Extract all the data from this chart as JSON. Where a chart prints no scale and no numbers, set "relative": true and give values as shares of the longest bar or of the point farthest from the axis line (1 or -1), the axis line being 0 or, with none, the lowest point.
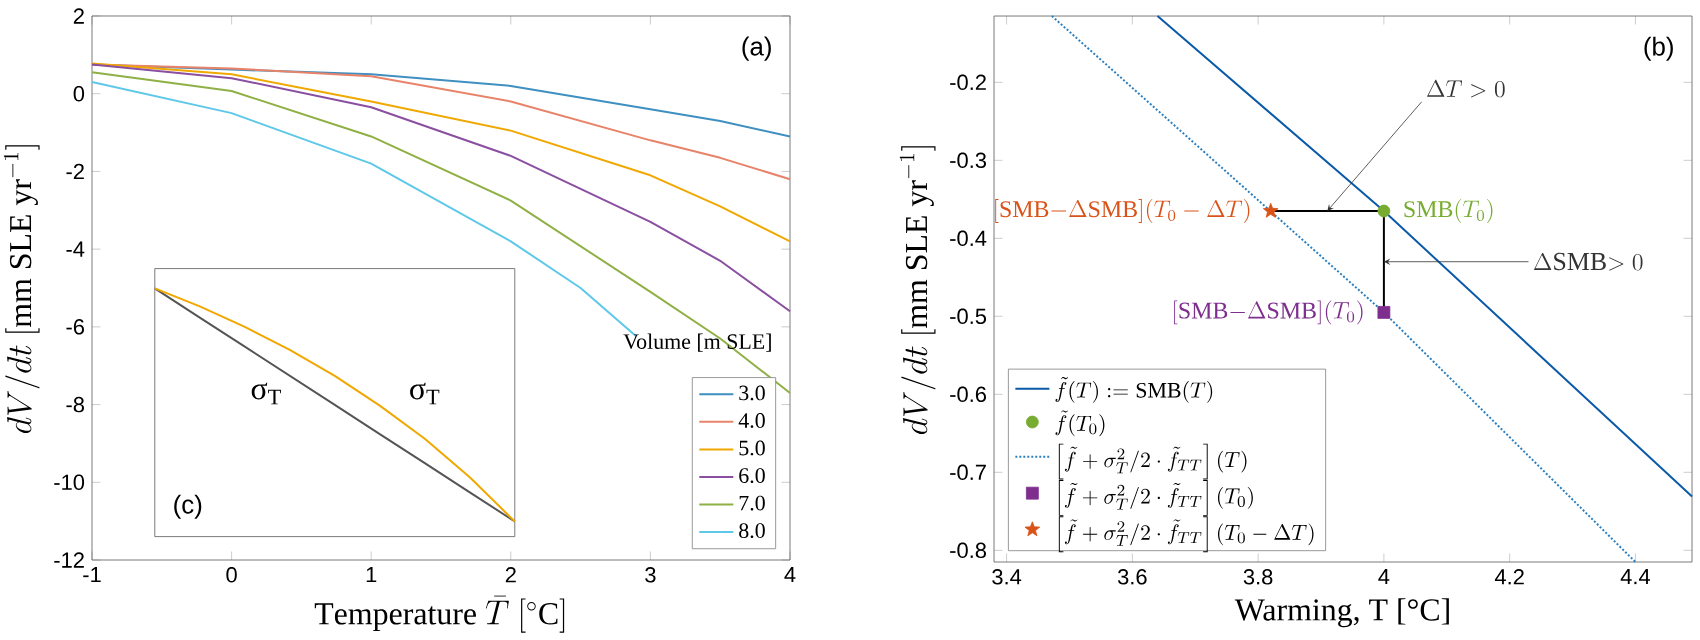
{
  "chart_data": [
    {
      "type": "line",
      "xlabel": "\\mathrm{Temperature}\\ \\bar{T}\\ [{}^{\\circ}\\mathrm{C}]",
      "ylabel": "dV/dt\\ [\\mathrm{mm\\ SLE\\ yr}^{-1}]",
      "legend_title": "Volume [m SLE]",
      "legend": "bottom right",
      "x": [
        -1,
        0,
        1,
        2,
        3,
        3.5,
        4
      ],
      "xlim": [
        -1,
        4
      ],
      "ylim": [
        -12,
        2
      ],
      "xticks": [
        -1,
        0,
        1,
        2,
        3,
        4
      ],
      "yticks": [
        -12,
        -10,
        -8,
        -6,
        -4,
        -2,
        0,
        2
      ],
      "series": [
        {
          "name": "3.0",
          "color": "#3f8fc0",
          "values": [
            0.75,
            0.62,
            0.5,
            0.2,
            -0.4,
            -0.7,
            -1.1
          ]
        },
        {
          "name": "4.0",
          "color": "#e8836a",
          "values": [
            0.75,
            0.65,
            0.45,
            -0.2,
            -1.2,
            -1.65,
            -2.2
          ]
        },
        {
          "name": "5.0",
          "color": "#f0a800",
          "values": [
            0.78,
            0.5,
            -0.2,
            -0.95,
            -2.1,
            -2.9,
            -3.8
          ]
        },
        {
          "name": "6.0",
          "color": "#8a4fa0",
          "values": [
            0.75,
            0.4,
            -0.35,
            -1.6,
            -3.3,
            -4.3,
            -5.6
          ]
        },
        {
          "name": "7.0",
          "color": "#8fb045",
          "values": [
            0.55,
            0.07,
            -1.1,
            -2.75,
            -5.1,
            -6.3,
            -7.7
          ]
        },
        {
          "name": "8.0",
          "color": "#5ec8e8",
          "x": [
            -1,
            0,
            1,
            2,
            2.5,
            2.9
          ],
          "values": [
            0.3,
            -0.5,
            -1.8,
            -3.8,
            -5.0,
            -6.25
          ]
        }
      ],
      "annotations": [
        "(a)"
      ]
    },
    {
      "type": "line",
      "xlabel": "Warming, T [°C]",
      "ylabel": "dV/dt\\ [\\mathrm{mm\\ SLE\\ yr}^{-1}]",
      "legend": "bottom left",
      "xlim": [
        3.38,
        4.49
      ],
      "ylim": [
        -0.815,
        -0.115
      ],
      "xticks": [
        3.4,
        3.6,
        3.8,
        4,
        4.2,
        4.4
      ],
      "yticks": [
        -0.8,
        -0.7,
        -0.6,
        -0.5,
        -0.4,
        -0.3,
        -0.2
      ],
      "series": [
        {
          "type": "line",
          "color": "#000000",
          "x": [
            3.82,
            4.0
          ],
          "values": [
            -0.365,
            -0.365
          ]
        },
        {
          "type": "line",
          "color": "#000000",
          "x": [
            4.0,
            4.0
          ],
          "values": [
            -0.495,
            -0.365
          ]
        },
        {
          "name": "\\tilde{f}(T) := \\mathrm{SMB}(T)",
          "type": "line",
          "color": "#0a5aa8",
          "x": [
            3.64,
            4.0,
            4.49
          ],
          "values": [
            -0.115,
            -0.365,
            -0.731
          ]
        },
        {
          "name": "\\tilde{f}(T_0)",
          "type": "scatter",
          "marker": "circle",
          "color": "#77ac30",
          "x": [
            4.0
          ],
          "values": [
            -0.365
          ]
        },
        {
          "name": "\\left[\\tilde{f} + \\sigma_T^2/2 \\cdot \\tilde{f}_{TT}\\right](T)",
          "type": "line",
          "line_style": "dotted",
          "color": "#2a7fc0",
          "x": [
            3.472,
            4.0,
            4.4
          ],
          "values": [
            -0.115,
            -0.495,
            -0.815
          ]
        },
        {
          "name": "\\left[\\tilde{f} + \\sigma_T^2/2 \\cdot \\tilde{f}_{TT}\\right](T_0)",
          "type": "scatter",
          "marker": "square",
          "color": "#7e2f8e",
          "x": [
            4.0
          ],
          "values": [
            -0.495
          ]
        },
        {
          "name": "\\left[\\tilde{f} + \\sigma_T^2/2 \\cdot \\tilde{f}_{TT}\\right](T_0 - \\Delta T)",
          "type": "scatter",
          "marker": "star",
          "color": "#d95319",
          "x": [
            3.82
          ],
          "values": [
            -0.365
          ]
        }
      ],
      "annotations": [
        "(b)",
        {
          "text": "\\Delta T > 0",
          "x": 3.91,
          "y": -0.365
        },
        {
          "text": "\\Delta\\mathrm{SMB}{>}\\ 0",
          "x": 4.0,
          "y": -0.43
        },
        {
          "text": "\\mathrm{SMB}(T_0)",
          "x": 4.0,
          "y": -0.365
        },
        {
          "text": "[\\mathrm{SMB}{-}\\Delta\\mathrm{SMB}](T_0 - \\Delta T)",
          "x": 3.82,
          "y": -0.365
        },
        {
          "text": "[\\mathrm{SMB}{-}\\Delta\\mathrm{SMB}](T_0)",
          "x": 4.0,
          "y": -0.495
        }
      ]
    },
    {
      "type": "line",
      "relative": true,
      "categories": [
        null,
        null,
        null,
        null,
        null,
        null,
        null,
        null,
        null
      ],
      "series": [
        {
          "color": "#555555",
          "values": [
            1,
            0.875,
            0.75,
            0.625,
            0.5,
            0.375,
            0.25,
            0.125,
            0
          ]
        },
        {
          "color": "#f0a800",
          "values": [
            1,
            0.923,
            0.835,
            0.736,
            0.625,
            0.497,
            0.355,
            0.19,
            0
          ]
        }
      ],
      "annotations": [
        "(c)",
        "σ$_{T}$",
        "σ$_{T}$"
      ]
    }
  ]
}
